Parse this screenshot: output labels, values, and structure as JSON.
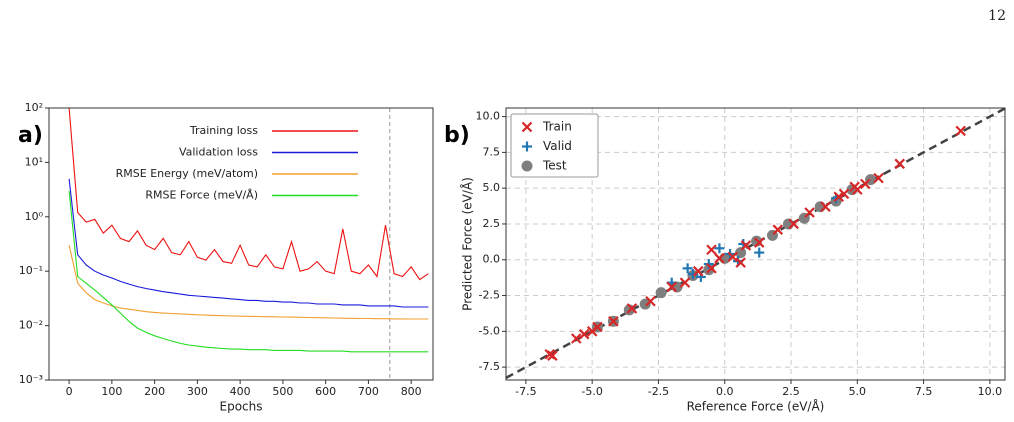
{
  "page_number": "12",
  "chart_data": [
    {
      "type": "line",
      "panel_label": "a)",
      "xlabel": "Epochs",
      "log_y": true,
      "grid": false,
      "xlim": [
        -47,
        851
      ],
      "xticks": [
        0,
        100,
        200,
        300,
        400,
        500,
        600,
        700,
        800
      ],
      "ylim": [
        0.001,
        100
      ],
      "yticks": [
        {
          "value": 0.001,
          "label": "10⁻³"
        },
        {
          "value": 0.01,
          "label": "10⁻²"
        },
        {
          "value": 0.1,
          "label": "10⁻¹"
        },
        {
          "value": 1,
          "label": "10⁰"
        },
        {
          "value": 10,
          "label": "10¹"
        },
        {
          "value": 100,
          "label": "10²"
        }
      ],
      "vline": 750,
      "legend": "upper right",
      "x": [
        0,
        20,
        40,
        60,
        80,
        100,
        120,
        140,
        160,
        180,
        200,
        220,
        240,
        260,
        280,
        300,
        320,
        340,
        360,
        380,
        400,
        420,
        440,
        460,
        480,
        500,
        520,
        540,
        560,
        580,
        600,
        620,
        640,
        660,
        680,
        700,
        720,
        740,
        760,
        780,
        800,
        820,
        840
      ],
      "series": [
        {
          "name": "Training loss",
          "color": "#ee1111",
          "values": [
            100,
            1.2,
            0.8,
            0.9,
            0.5,
            0.7,
            0.4,
            0.35,
            0.55,
            0.3,
            0.25,
            0.4,
            0.22,
            0.2,
            0.35,
            0.18,
            0.16,
            0.25,
            0.15,
            0.14,
            0.3,
            0.13,
            0.12,
            0.2,
            0.12,
            0.11,
            0.35,
            0.1,
            0.11,
            0.15,
            0.1,
            0.09,
            0.6,
            0.1,
            0.09,
            0.13,
            0.08,
            0.7,
            0.09,
            0.08,
            0.12,
            0.07,
            0.09
          ]
        },
        {
          "name": "Validation loss",
          "color": "#1a1adb",
          "values": [
            5,
            0.2,
            0.13,
            0.1,
            0.085,
            0.075,
            0.065,
            0.058,
            0.052,
            0.048,
            0.045,
            0.042,
            0.04,
            0.038,
            0.036,
            0.035,
            0.034,
            0.033,
            0.032,
            0.031,
            0.03,
            0.029,
            0.029,
            0.028,
            0.028,
            0.027,
            0.027,
            0.026,
            0.026,
            0.025,
            0.025,
            0.025,
            0.024,
            0.024,
            0.024,
            0.023,
            0.023,
            0.023,
            0.023,
            0.022,
            0.022,
            0.022,
            0.022
          ]
        },
        {
          "name": "RMSE Energy (meV/atom)",
          "color": "#f0a030",
          "values": [
            0.3,
            0.06,
            0.04,
            0.03,
            0.026,
            0.023,
            0.021,
            0.02,
            0.019,
            0.018,
            0.0175,
            0.017,
            0.0167,
            0.0164,
            0.0161,
            0.0158,
            0.0156,
            0.0154,
            0.0152,
            0.015,
            0.0149,
            0.0148,
            0.0147,
            0.0146,
            0.0145,
            0.0144,
            0.0143,
            0.0142,
            0.0141,
            0.014,
            0.0139,
            0.0138,
            0.0137,
            0.0136,
            0.0135,
            0.0135,
            0.0134,
            0.0134,
            0.0133,
            0.0133,
            0.0132,
            0.0132,
            0.0132
          ]
        },
        {
          "name": "RMSE Force (meV/Å)",
          "color": "#22dd22",
          "values": [
            3,
            0.08,
            0.06,
            0.045,
            0.033,
            0.024,
            0.017,
            0.012,
            0.009,
            0.0075,
            0.0065,
            0.0058,
            0.0052,
            0.0047,
            0.0044,
            0.0042,
            0.004,
            0.0039,
            0.0038,
            0.0037,
            0.0037,
            0.0036,
            0.0036,
            0.0036,
            0.0035,
            0.0035,
            0.0035,
            0.0035,
            0.0034,
            0.0034,
            0.0034,
            0.0034,
            0.0034,
            0.0033,
            0.0033,
            0.0033,
            0.0033,
            0.0033,
            0.0033,
            0.0033,
            0.0033,
            0.0033,
            0.0033
          ]
        }
      ]
    },
    {
      "type": "scatter",
      "panel_label": "b)",
      "xlabel": "Reference Force (eV/Å)",
      "ylabel": "Predicted Force (eV/Å)",
      "grid": true,
      "identity_line": true,
      "legend": "upper left",
      "xlim": [
        -8.25,
        10.57
      ],
      "xticks": [
        -7.5,
        {
          "value": -5,
          "label": "-5.0"
        },
        -2.5,
        {
          "value": 0,
          "label": "0.0"
        },
        2.5,
        {
          "value": 5,
          "label": "5.0"
        },
        7.5,
        {
          "value": 10,
          "label": "10.0"
        }
      ],
      "ylim": [
        -8.4,
        10.6
      ],
      "yticks": [
        -7.5,
        {
          "value": -5,
          "label": "-5.0"
        },
        -2.5,
        {
          "value": 0,
          "label": "0.0"
        },
        2.5,
        {
          "value": 5,
          "label": "5.0"
        },
        7.5,
        {
          "value": 10,
          "label": "10.0"
        }
      ],
      "series": [
        {
          "name": "Train",
          "color": "#d62728",
          "marker": "x",
          "x": [
            -6.6,
            -6.5,
            -5.6,
            -5.3,
            -5.0,
            -4.8,
            -4.2,
            -3.5,
            -2.8,
            -2.0,
            -1.5,
            -1.0,
            -0.5,
            -0.2,
            0.3,
            0.8,
            1.3,
            2.0,
            2.6,
            3.2,
            3.8,
            4.3,
            4.5,
            4.9,
            5.0,
            5.3,
            5.8,
            6.6,
            8.9,
            0.6,
            -0.5
          ],
          "values": [
            -6.6,
            -6.7,
            -5.5,
            -5.2,
            -5.0,
            -4.7,
            -4.3,
            -3.4,
            -2.9,
            -1.9,
            -1.6,
            -0.8,
            -0.6,
            0.1,
            0.2,
            1.0,
            1.2,
            2.1,
            2.5,
            3.3,
            3.7,
            4.4,
            4.6,
            5.1,
            4.9,
            5.3,
            5.7,
            6.7,
            9.0,
            -0.2,
            0.7
          ]
        },
        {
          "name": "Valid",
          "color": "#1f77b4",
          "marker": "+",
          "x": [
            -2.0,
            -1.4,
            -0.9,
            -0.6,
            -0.2,
            0.2,
            0.5,
            0.7,
            1.3,
            4.2,
            -1.2
          ],
          "values": [
            -1.6,
            -0.6,
            -1.2,
            -0.3,
            0.8,
            0.4,
            -0.1,
            1.1,
            0.5,
            4.3,
            -1.0
          ]
        },
        {
          "name": "Test",
          "color": "#7f7f7f",
          "marker": "o",
          "x": [
            -4.8,
            -4.2,
            -3.6,
            -3.0,
            -2.4,
            -1.8,
            -1.2,
            -0.6,
            0,
            0.6,
            1.2,
            1.8,
            2.4,
            3.0,
            3.6,
            4.2,
            4.8,
            5.5
          ],
          "values": [
            -4.7,
            -4.3,
            -3.5,
            -3.1,
            -2.3,
            -1.9,
            -1.1,
            -0.7,
            0.1,
            0.5,
            1.3,
            1.7,
            2.5,
            2.9,
            3.7,
            4.1,
            4.9,
            5.6
          ]
        }
      ]
    }
  ]
}
